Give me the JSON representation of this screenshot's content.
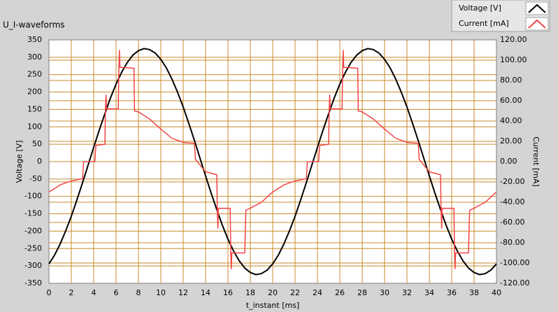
{
  "chart_data": {
    "type": "line",
    "title": "U_I-waveforms",
    "xlabel": "t_instant [ms]",
    "ylabel": "Voltage [V]",
    "y2label": "Current [mA]",
    "xlim": [
      0,
      40
    ],
    "xticks": [
      0,
      2,
      4,
      6,
      8,
      10,
      12,
      14,
      16,
      18,
      20,
      22,
      24,
      26,
      28,
      30,
      32,
      34,
      36,
      38,
      40
    ],
    "ylim": [
      -350,
      350
    ],
    "yticks": [
      -350,
      -300,
      -250,
      -200,
      -150,
      -100,
      -50,
      0,
      50,
      100,
      150,
      200,
      250,
      300,
      350
    ],
    "y2lim": [
      -120,
      120
    ],
    "y2ticks": [
      {
        "value": -120,
        "label": "-120.00"
      },
      {
        "value": -100,
        "label": "-100.00"
      },
      {
        "value": -80,
        "label": "-80.00"
      },
      {
        "value": -60,
        "label": "-60.00"
      },
      {
        "value": -40,
        "label": "-40.00"
      },
      {
        "value": -20,
        "label": "-20.00"
      },
      {
        "value": 0,
        "label": "0.00"
      },
      {
        "value": 20,
        "label": "20.00"
      },
      {
        "value": 40,
        "label": "40.00"
      },
      {
        "value": 60,
        "label": "60.00"
      },
      {
        "value": 80,
        "label": "80.00"
      },
      {
        "value": 100,
        "label": "100.00"
      },
      {
        "value": 120,
        "label": "120.00"
      }
    ],
    "grid": true,
    "legend": "top-right",
    "grid_color": "#c88a2e",
    "background": "#ffffff",
    "series": [
      {
        "name": "Voltage [V]",
        "color": "#000000",
        "axis": "y",
        "x": [
          0,
          0.5,
          1,
          1.5,
          2,
          2.5,
          3,
          3.5,
          4,
          4.5,
          5,
          5.5,
          6,
          6.5,
          7,
          7.5,
          8,
          8.5,
          9,
          9.5,
          10,
          10.5,
          11,
          11.5,
          12,
          12.5,
          13,
          13.5,
          14,
          14.5,
          15,
          15.5,
          16,
          16.5,
          17,
          17.5,
          18,
          18.5,
          19,
          19.5,
          20,
          20.5,
          21,
          21.5,
          22,
          22.5,
          23,
          23.5,
          24,
          24.5,
          25,
          25.5,
          26,
          26.5,
          27,
          27.5,
          28,
          28.5,
          29,
          29.5,
          30,
          30.5,
          31,
          31.5,
          32,
          32.5,
          33,
          33.5,
          34,
          34.5,
          35,
          35.5,
          36,
          36.5,
          37,
          37.5,
          38,
          38.5,
          39,
          39.5,
          40
        ],
        "values": [
          -294,
          -269,
          -237,
          -199,
          -157,
          -110,
          -61,
          -10,
          41,
          91,
          138,
          183,
          223,
          257,
          285,
          306,
          319,
          325,
          322,
          312,
          294,
          269,
          237,
          199,
          157,
          110,
          61,
          10,
          -41,
          -91,
          -138,
          -183,
          -223,
          -257,
          -285,
          -306,
          -319,
          -325,
          -322,
          -312,
          -294,
          -269,
          -237,
          -199,
          -157,
          -110,
          -61,
          -10,
          41,
          91,
          138,
          183,
          223,
          257,
          285,
          306,
          319,
          325,
          322,
          312,
          294,
          269,
          237,
          199,
          157,
          110,
          61,
          10,
          -41,
          -91,
          -138,
          -183,
          -223,
          -257,
          -285,
          -306,
          -319,
          -325,
          -322,
          -312,
          -294
        ]
      },
      {
        "name": "Current [mA]",
        "color": "#f24545",
        "axis": "y2",
        "x": [
          0,
          1,
          2,
          3,
          3.1,
          4.1,
          4.2,
          5,
          5.05,
          5.1,
          5.15,
          6.2,
          6.25,
          6.3,
          6.35,
          7.6,
          7.65,
          8,
          9,
          10,
          11,
          12,
          13,
          13.1,
          14,
          15,
          15.05,
          15.1,
          15.15,
          16.2,
          16.25,
          16.3,
          16.35,
          17.5,
          17.6,
          18,
          19,
          20,
          21,
          22,
          23,
          23.1,
          24.1,
          24.2,
          25,
          25.05,
          25.1,
          25.15,
          26.2,
          26.25,
          26.3,
          26.35,
          27.6,
          27.65,
          28,
          29,
          30,
          31,
          32,
          33,
          33.1,
          34,
          35,
          35.05,
          35.1,
          35.15,
          36.2,
          36.25,
          36.3,
          36.35,
          37.5,
          37.6,
          38,
          39,
          40
        ],
        "values": [
          -30,
          -23,
          -19,
          -17,
          0,
          0,
          16,
          17,
          52,
          66,
          52,
          52,
          90,
          110,
          93,
          92,
          50,
          49,
          42,
          32,
          23,
          19,
          18,
          2,
          -10,
          -13,
          -48,
          -66,
          -46,
          -46,
          -89,
          -106,
          -90,
          -90,
          -48,
          -46,
          -40,
          -30,
          -23,
          -19,
          -17,
          0,
          0,
          16,
          17,
          52,
          66,
          52,
          52,
          90,
          110,
          93,
          92,
          50,
          49,
          42,
          32,
          23,
          19,
          18,
          2,
          -10,
          -13,
          -48,
          -66,
          -46,
          -46,
          -89,
          -106,
          -90,
          -90,
          -48,
          -46,
          -40,
          -30
        ]
      }
    ]
  }
}
